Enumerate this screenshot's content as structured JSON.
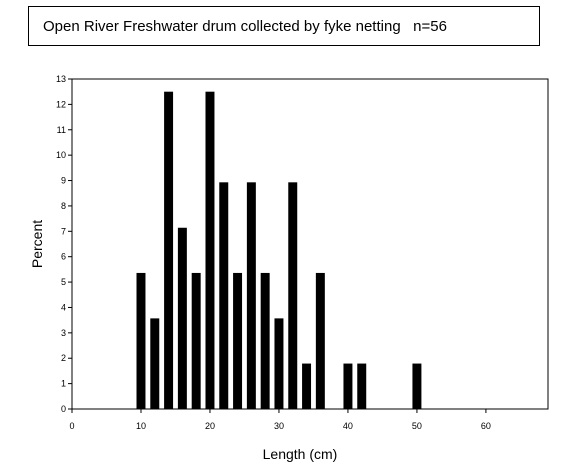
{
  "chart_data": {
    "type": "bar",
    "title": "Open River Freshwater drum collected by fyke netting",
    "subtitle": "n=56",
    "xlabel": "Length (cm)",
    "ylabel": "Percent",
    "xlim": [
      0,
      69
    ],
    "ylim": [
      0,
      13
    ],
    "x_ticks": [
      0,
      10,
      20,
      30,
      40,
      50,
      60
    ],
    "y_ticks": [
      0,
      1,
      2,
      3,
      4,
      5,
      6,
      7,
      8,
      9,
      10,
      11,
      12,
      13
    ],
    "grid": false,
    "legend": "none",
    "bar_color": "#000000",
    "x": [
      10,
      12,
      14,
      16,
      18,
      20,
      22,
      24,
      26,
      28,
      30,
      32,
      34,
      36,
      40,
      42,
      50
    ],
    "values": [
      5.36,
      3.57,
      12.5,
      7.14,
      5.36,
      12.5,
      8.93,
      5.36,
      8.93,
      5.36,
      3.57,
      8.93,
      1.79,
      5.36,
      1.79,
      1.79,
      1.79
    ]
  }
}
